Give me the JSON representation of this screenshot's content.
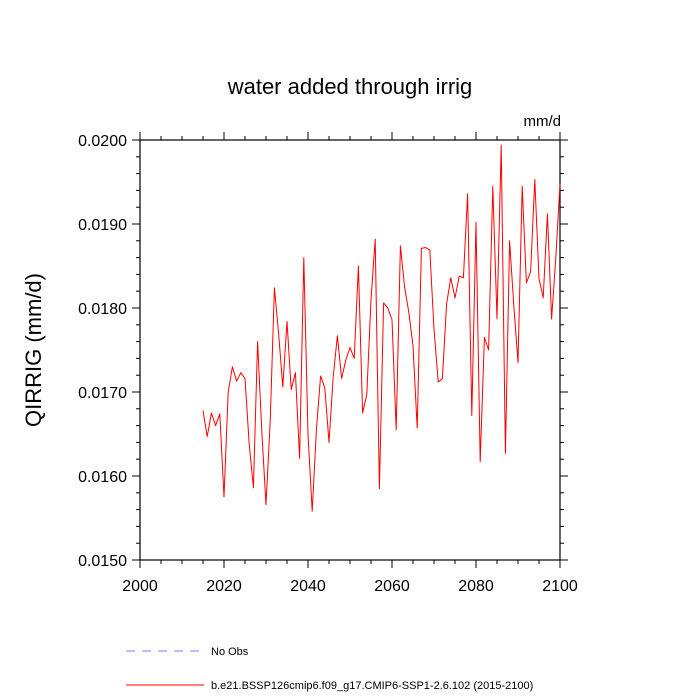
{
  "chart_data": {
    "type": "line",
    "title": "water added through irrig",
    "units": "mm/d",
    "ylabel": "QIRRIG  (mm/d)",
    "xlabel": "",
    "xlim": [
      2000,
      2100
    ],
    "ylim": [
      0.015,
      0.02
    ],
    "xticks": [
      2000,
      2020,
      2040,
      2060,
      2080,
      2100
    ],
    "xtick_labels": [
      "2000",
      "2020",
      "2040",
      "2060",
      "2080",
      "2100"
    ],
    "yticks": [
      0.015,
      0.016,
      0.017,
      0.018,
      0.019,
      0.02
    ],
    "ytick_labels": [
      "0.0150",
      "0.0160",
      "0.0170",
      "0.0180",
      "0.0190",
      "0.0200"
    ],
    "grid": false,
    "legend_position": "bottom-left",
    "legend": [
      {
        "label": "No Obs",
        "color": "#8080ff",
        "style": "dashed"
      },
      {
        "label": "b.e21.BSSP126cmip6.f09_g17.CMIP6-SSP1-2.6.102 (2015-2100)",
        "color": "#ff0000",
        "style": "solid"
      }
    ],
    "series": [
      {
        "name": "b.e21.BSSP126cmip6.f09_g17.CMIP6-SSP1-2.6.102 (2015-2100)",
        "color": "#ff0000",
        "x": [
          2015,
          2016,
          2017,
          2018,
          2019,
          2020,
          2021,
          2022,
          2023,
          2024,
          2025,
          2026,
          2027,
          2028,
          2029,
          2030,
          2031,
          2032,
          2033,
          2034,
          2035,
          2036,
          2037,
          2038,
          2039,
          2040,
          2041,
          2042,
          2043,
          2044,
          2045,
          2046,
          2047,
          2048,
          2049,
          2050,
          2051,
          2052,
          2053,
          2054,
          2055,
          2056,
          2057,
          2058,
          2059,
          2060,
          2061,
          2062,
          2063,
          2064,
          2065,
          2066,
          2067,
          2068,
          2069,
          2070,
          2071,
          2072,
          2073,
          2074,
          2075,
          2076,
          2077,
          2078,
          2079,
          2080,
          2081,
          2082,
          2083,
          2084,
          2085,
          2086,
          2087,
          2088,
          2089,
          2090,
          2091,
          2092,
          2093,
          2094,
          2095,
          2096,
          2097,
          2098,
          2099,
          2100
        ],
        "values": [
          0.01678,
          0.01647,
          0.01675,
          0.0166,
          0.01674,
          0.01575,
          0.017,
          0.0173,
          0.01713,
          0.01723,
          0.01716,
          0.01638,
          0.01586,
          0.0176,
          0.01653,
          0.01566,
          0.01665,
          0.01824,
          0.0177,
          0.01706,
          0.01784,
          0.01703,
          0.01723,
          0.01621,
          0.0186,
          0.0165,
          0.01558,
          0.01655,
          0.01719,
          0.01705,
          0.0164,
          0.01718,
          0.01767,
          0.01716,
          0.01738,
          0.01753,
          0.0174,
          0.0185,
          0.01675,
          0.01697,
          0.0181,
          0.01882,
          0.01585,
          0.01806,
          0.018,
          0.01786,
          0.01655,
          0.01874,
          0.01825,
          0.01795,
          0.01755,
          0.01657,
          0.01871,
          0.01872,
          0.01869,
          0.01775,
          0.01712,
          0.01716,
          0.01805,
          0.01836,
          0.01812,
          0.01838,
          0.01836,
          0.01936,
          0.01672,
          0.01902,
          0.01617,
          0.01765,
          0.0175,
          0.01945,
          0.01787,
          0.01994,
          0.01627,
          0.0188,
          0.01803,
          0.01735,
          0.01945,
          0.0183,
          0.01843,
          0.01953,
          0.01835,
          0.01812,
          0.01912,
          0.01787,
          0.0186,
          0.01948
        ]
      }
    ]
  }
}
